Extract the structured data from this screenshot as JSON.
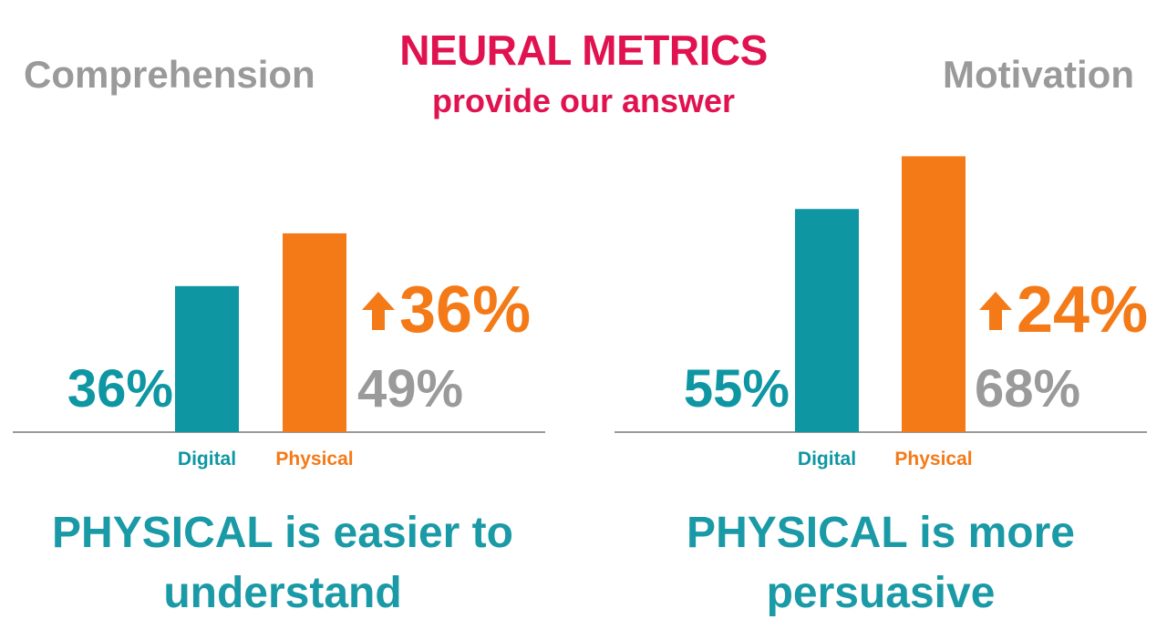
{
  "title": "NEURAL METRICS",
  "subtitle": "provide our answer",
  "colors": {
    "accent": "#e0124f",
    "digital": "#0e96a3",
    "physical": "#f47a18",
    "muted": "#9a9a9a",
    "teal_text": "#1a9aa6",
    "axis": "#9a9a9a"
  },
  "icons": {
    "increase": "up-arrow-icon"
  },
  "chart_data": [
    {
      "type": "bar",
      "title": "Comprehension",
      "categories": [
        "Digital",
        "Physical"
      ],
      "values": [
        36,
        49
      ],
      "value_labels": [
        "36%",
        "49%"
      ],
      "increase_label": "36%",
      "conclusion_line1": "PHYSICAL is easier to",
      "conclusion_line2": "understand"
    },
    {
      "type": "bar",
      "title": "Motivation",
      "categories": [
        "Digital",
        "Physical"
      ],
      "values": [
        55,
        68
      ],
      "value_labels": [
        "55%",
        "68%"
      ],
      "increase_label": "24%",
      "conclusion_line1": "PHYSICAL is more",
      "conclusion_line2": "persuasive"
    }
  ]
}
